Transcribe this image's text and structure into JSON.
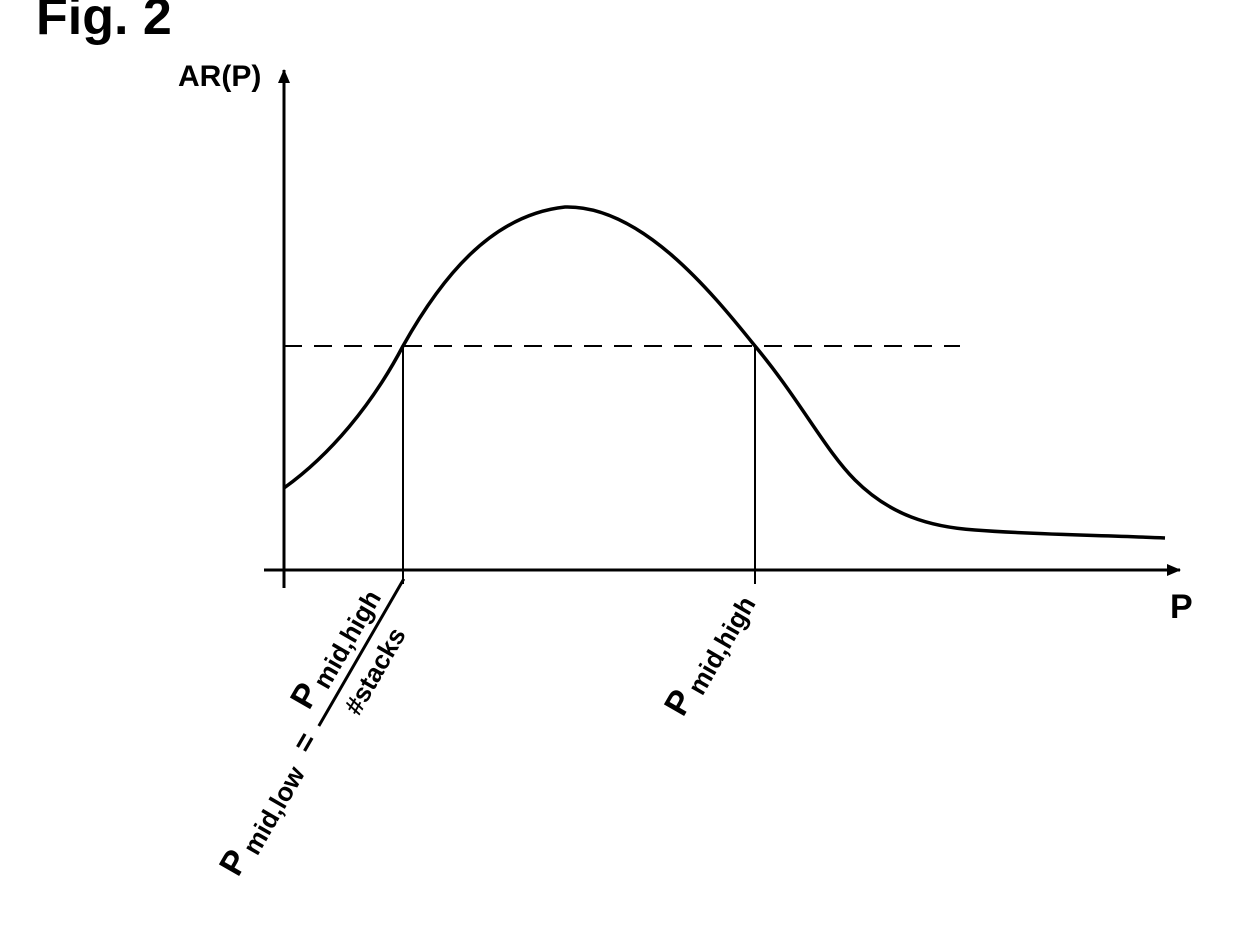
{
  "figure": {
    "title": "Fig. 2",
    "y_axis_label": "AR(P)",
    "x_axis_label": "P",
    "markers": {
      "low": {
        "symbol": "P",
        "subscript": "mid,low",
        "equals": "=",
        "numerator_symbol": "P",
        "numerator_subscript": "mid,high",
        "denominator": "#stacks"
      },
      "high": {
        "symbol": "P",
        "subscript": "mid,high"
      }
    },
    "colors": {
      "ink": "#000000",
      "background": "#ffffff"
    }
  }
}
